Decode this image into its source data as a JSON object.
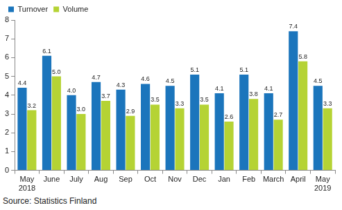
{
  "chart_data": {
    "type": "bar",
    "source": "Source: Statistics Finland",
    "categories": [
      "May\n2018",
      "June",
      "July",
      "Aug",
      "Sep",
      "Oct",
      "Nov",
      "Dec",
      "Jan",
      "Feb",
      "March",
      "April",
      "May\n2019"
    ],
    "series": [
      {
        "name": "Turnover",
        "color": "#1b75bc",
        "values": [
          4.4,
          6.1,
          4.0,
          4.7,
          4.3,
          4.6,
          4.5,
          5.1,
          4.1,
          5.1,
          4.1,
          7.4,
          4.5
        ],
        "value_labels": [
          "4.4",
          "6.1",
          "4.0",
          "4.7",
          "4.3",
          "4.6",
          "4.5",
          "5.1",
          "4.1",
          "5.1",
          "4.1",
          "7.4",
          "4.5"
        ]
      },
      {
        "name": "Volume",
        "color": "#b5d334",
        "values": [
          3.2,
          5.0,
          3.0,
          3.7,
          2.9,
          3.5,
          3.3,
          3.5,
          2.6,
          3.8,
          2.7,
          5.8,
          3.3
        ],
        "value_labels": [
          "3.2",
          "5.0",
          "3.0",
          "3.7",
          "2.9",
          "3.5",
          "3.3",
          "3.5",
          "2.6",
          "3.8",
          "2.7",
          "5.8",
          "3.3"
        ]
      }
    ],
    "ylim": [
      0,
      8
    ],
    "yticks": [
      0,
      1,
      2,
      3,
      4,
      5,
      6,
      7,
      8
    ],
    "grid": false,
    "legend": "top-left",
    "data_labels": true
  }
}
